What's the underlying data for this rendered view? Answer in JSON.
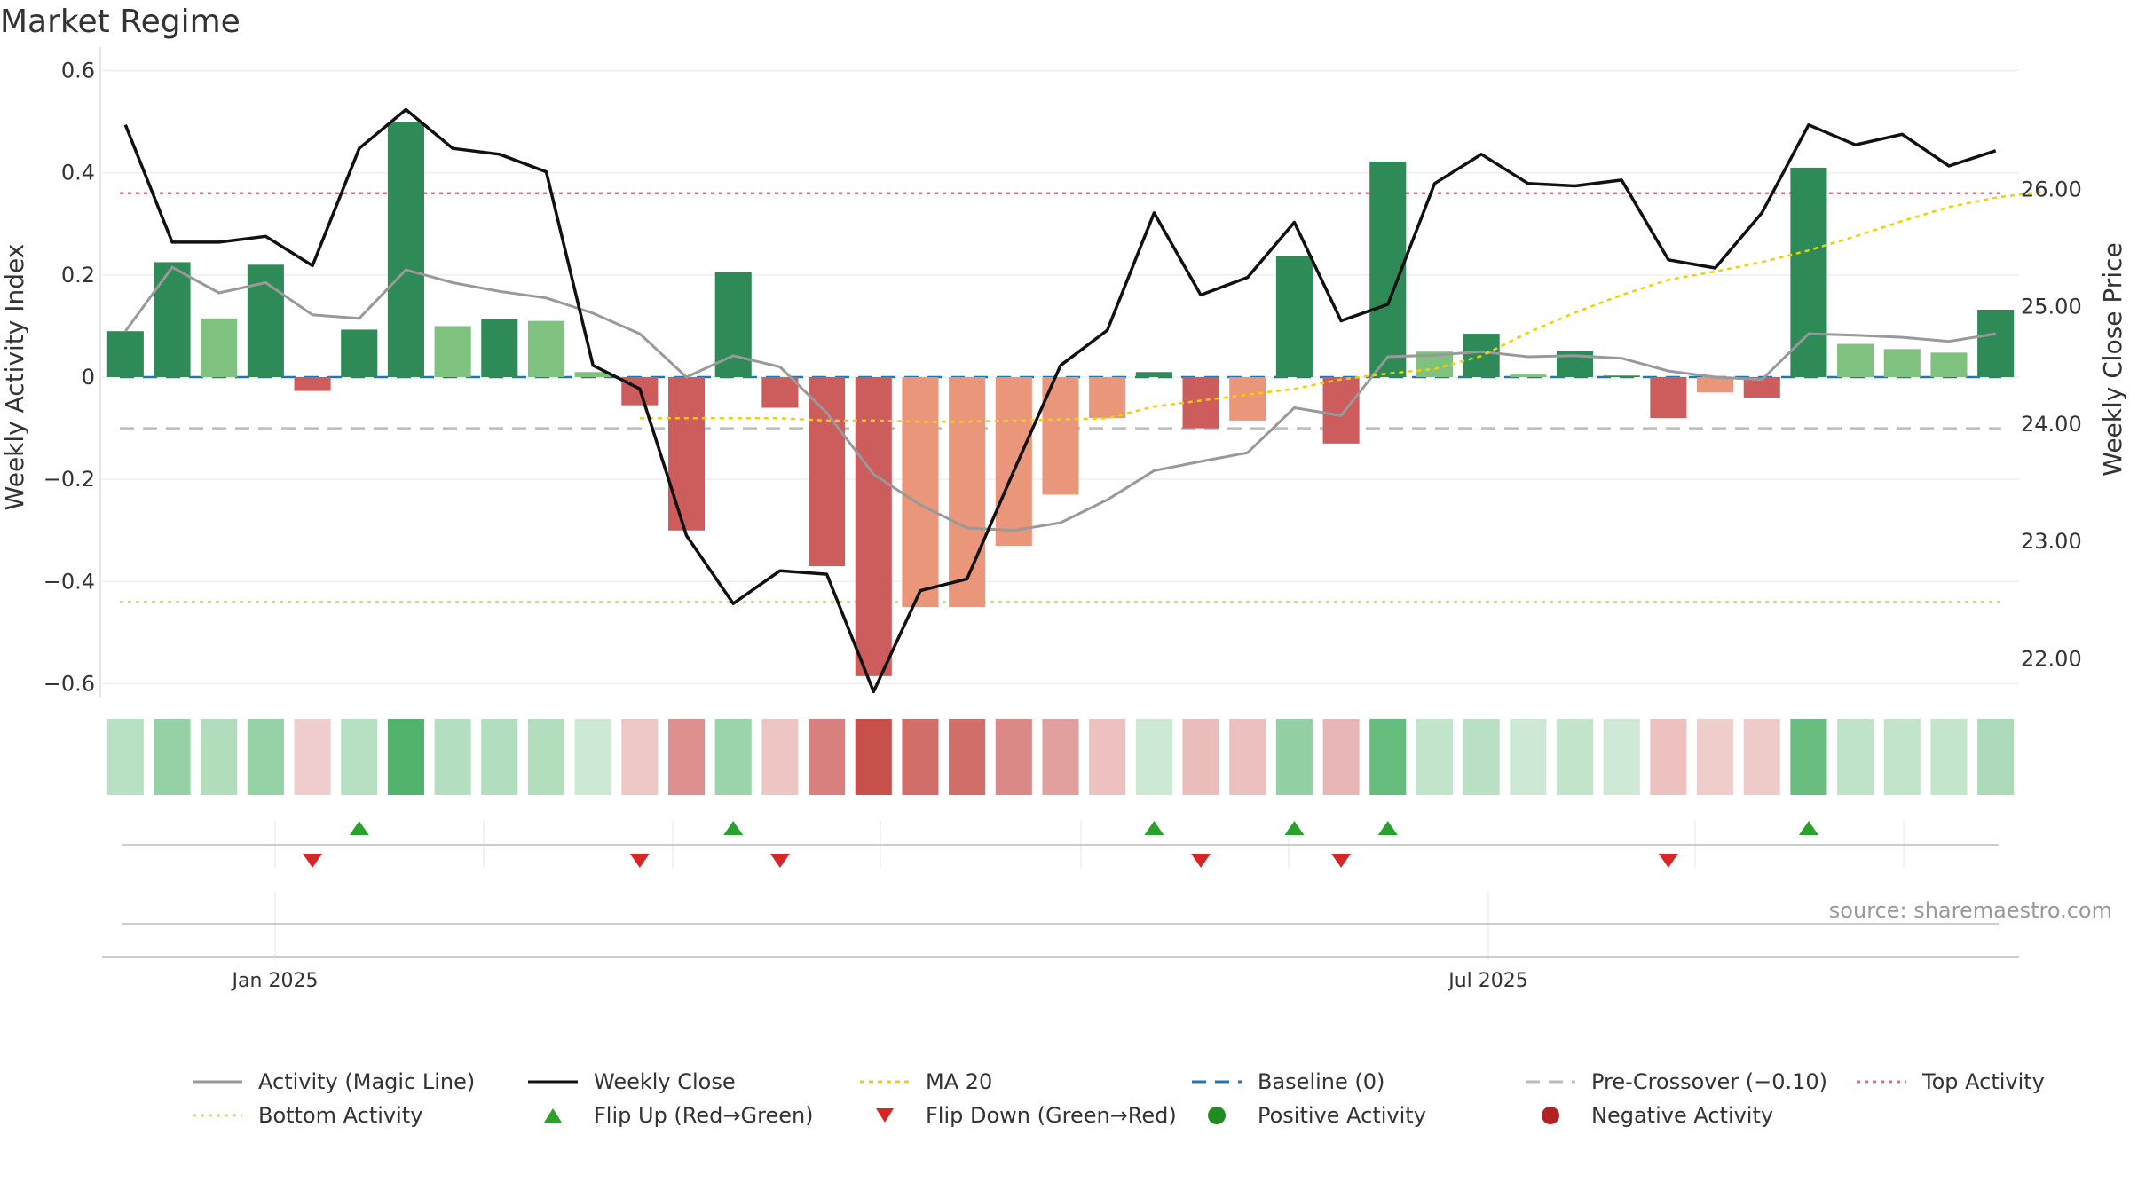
{
  "title": "Market Regime",
  "source": "source: sharemaestro.com",
  "colors": {
    "strong_green": "#2e8b57",
    "light_green": "#7fc17f",
    "strong_red": "#cd5c5c",
    "light_red": "#e9967a",
    "magic_line": "#999999",
    "close_line": "#111111",
    "ma20": "#f0d000",
    "baseline": "#1f77b4",
    "pre_crossover": "#bbbbbb",
    "top_activity": "#d9708a",
    "bottom_activity": "#b9e08a",
    "flip_up": "#2ca02c",
    "flip_down": "#d62728",
    "positive": "#228b22",
    "negative": "#b22222"
  },
  "chart_data": {
    "type": "bar",
    "title": "Market Regime",
    "x_tick_labels": [
      "Jan 2025",
      "Jul 2025"
    ],
    "ylabel": "Weekly Activity Index",
    "ylabel_right": "Weekly Close Price",
    "ylim": [
      -0.62,
      0.62
    ],
    "y_ticks": [
      0.6,
      0.4,
      0.2,
      0,
      -0.2,
      -0.4,
      -0.6
    ],
    "y_tick_labels": [
      "0.6",
      "0.4",
      "0.2",
      "0",
      "−0.2",
      "−0.4",
      "−0.6"
    ],
    "y2lim": [
      21.7,
      27.1
    ],
    "y2_ticks": [
      26,
      25,
      24,
      23,
      22
    ],
    "y2_tick_labels": [
      "26.00",
      "25.00",
      "24.00",
      "23.00",
      "22.00"
    ],
    "grid": true,
    "legend_position": "bottom",
    "activity": [
      0.09,
      0.225,
      0.115,
      0.22,
      -0.027,
      0.093,
      0.5,
      0.1,
      0.113,
      0.11,
      0.01,
      -0.055,
      -0.3,
      0.205,
      -0.06,
      -0.37,
      -0.585,
      -0.45,
      -0.45,
      -0.33,
      -0.23,
      -0.08,
      0.01,
      -0.1,
      -0.085,
      0.237,
      -0.13,
      0.422,
      0.05,
      0.085,
      0.005,
      0.052,
      0.003,
      -0.08,
      -0.03,
      -0.04,
      0.41,
      0.065,
      0.055,
      0.048,
      0.132
    ],
    "regime_strength": [
      "pos-strong",
      "pos-strong",
      "pos-weak",
      "pos-strong",
      "neg-strong",
      "pos-strong",
      "pos-strong",
      "pos-weak",
      "pos-strong",
      "pos-weak",
      "pos-weak",
      "neg-strong",
      "neg-strong",
      "pos-strong",
      "neg-strong",
      "neg-strong",
      "neg-strong",
      "neg-weak",
      "neg-weak",
      "neg-weak",
      "neg-weak",
      "neg-weak",
      "pos-strong",
      "neg-strong",
      "neg-weak",
      "pos-strong",
      "neg-strong",
      "pos-strong",
      "pos-weak",
      "pos-strong",
      "pos-weak",
      "pos-strong",
      "pos-strong",
      "neg-strong",
      "neg-weak",
      "neg-strong",
      "pos-strong",
      "pos-weak",
      "pos-weak",
      "pos-weak",
      "pos-strong"
    ],
    "magic_line": [
      0.09,
      0.215,
      0.165,
      0.185,
      0.122,
      0.115,
      0.21,
      0.185,
      0.168,
      0.155,
      0.125,
      0.085,
      0.0,
      0.042,
      0.02,
      -0.07,
      -0.19,
      -0.25,
      -0.295,
      -0.3,
      -0.285,
      -0.24,
      -0.183,
      -0.165,
      -0.148,
      -0.06,
      -0.075,
      0.04,
      0.043,
      0.05,
      0.04,
      0.042,
      0.037,
      0.012,
      0.0,
      -0.005,
      0.085,
      0.082,
      0.078,
      0.07,
      0.085
    ],
    "weekly_close": [
      26.55,
      25.55,
      25.55,
      25.6,
      25.35,
      26.35,
      26.68,
      26.35,
      26.3,
      26.15,
      24.5,
      24.3,
      23.05,
      22.47,
      22.75,
      22.72,
      21.72,
      22.58,
      22.68,
      23.6,
      24.5,
      24.8,
      25.8,
      25.1,
      25.25,
      25.72,
      24.88,
      25.02,
      26.05,
      26.3,
      26.05,
      26.03,
      26.08,
      25.4,
      25.33,
      25.8,
      26.55,
      26.38,
      26.47,
      26.2,
      26.33
    ],
    "ma20_start_index": 11,
    "ma20": [
      24.05,
      24.05,
      24.05,
      24.05,
      24.03,
      24.03,
      24.02,
      24.02,
      24.03,
      24.04,
      24.05,
      24.15,
      24.2,
      24.25,
      24.3,
      24.38,
      24.43,
      24.47,
      24.58,
      24.78,
      24.95,
      25.1,
      25.23,
      25.3,
      25.38,
      25.48,
      25.6,
      25.73,
      25.85,
      25.93,
      25.98
    ],
    "reference_lines": {
      "baseline": 0,
      "pre_crossover": -0.1,
      "top_activity": 0.36,
      "bottom_activity": -0.44
    },
    "flip_up_indices": [
      5,
      13,
      22,
      25,
      27,
      36
    ],
    "flip_down_indices": [
      4,
      11,
      14,
      23,
      26,
      33
    ]
  },
  "legend": {
    "row1": [
      "Activity (Magic Line)",
      "Weekly Close",
      "MA 20",
      "Baseline (0)",
      "Pre-Crossover (−0.10)",
      "Top Activity"
    ],
    "row2": [
      "Bottom Activity",
      "Flip Up (Red→Green)",
      "Flip Down (Green→Red)",
      "Positive Activity",
      "Negative Activity"
    ]
  }
}
